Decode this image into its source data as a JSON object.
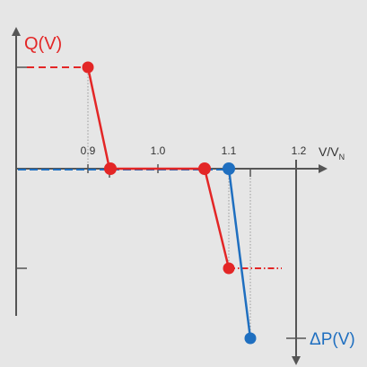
{
  "labels": {
    "q_axis": "Q(V)",
    "p_axis": "ΔP(V)",
    "x_axis_main": "V/V",
    "x_axis_sub": "N"
  },
  "ticks": [
    "0.9",
    "1.0",
    "1.1",
    "1.2"
  ],
  "colors": {
    "background": "#e6e6e6",
    "axis": "#555555",
    "q_curve": "#e32626",
    "p_curve": "#1f6fc0",
    "guide": "#999999"
  }
}
